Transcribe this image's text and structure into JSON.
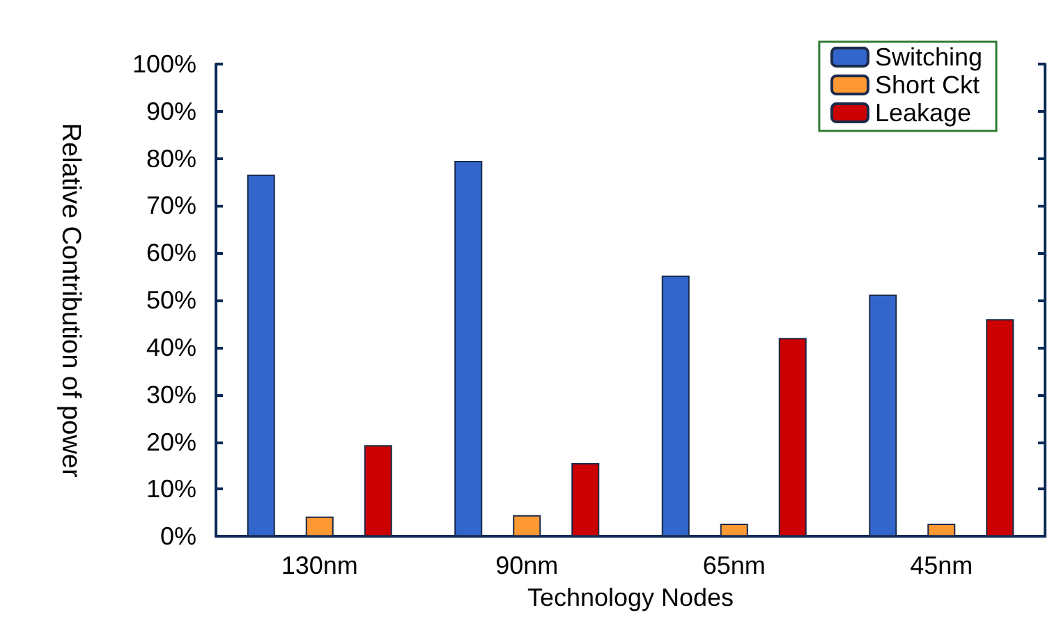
{
  "chart_data": {
    "type": "bar",
    "xlabel": "Technology Nodes",
    "ylabel": "Relative Contribution of power",
    "categories": [
      "130nm",
      "90nm",
      "65nm",
      "45nm"
    ],
    "series": [
      {
        "name": "Switching",
        "color": "#3366cc",
        "values": [
          76.6,
          79.5,
          55.2,
          51.2
        ]
      },
      {
        "name": "Short Ckt",
        "color": "#ff9933",
        "values": [
          4.2,
          4.5,
          2.7,
          2.7
        ]
      },
      {
        "name": "Leakage",
        "color": "#cc0000",
        "values": [
          19.3,
          15.5,
          42,
          46
        ]
      }
    ],
    "ylim": [
      0,
      100
    ],
    "yticks": [
      {
        "value": 0,
        "label": "0%"
      },
      {
        "value": 10,
        "label": "10%"
      },
      {
        "value": 20,
        "label": "20%"
      },
      {
        "value": 30,
        "label": "30%"
      },
      {
        "value": 40,
        "label": "40%"
      },
      {
        "value": 50,
        "label": "50%"
      },
      {
        "value": 60,
        "label": "60%"
      },
      {
        "value": 70,
        "label": "70%"
      },
      {
        "value": 80,
        "label": "80%"
      },
      {
        "value": 90,
        "label": "90%"
      },
      {
        "value": 100,
        "label": "100%"
      }
    ],
    "grid": false,
    "legend": "top right"
  }
}
